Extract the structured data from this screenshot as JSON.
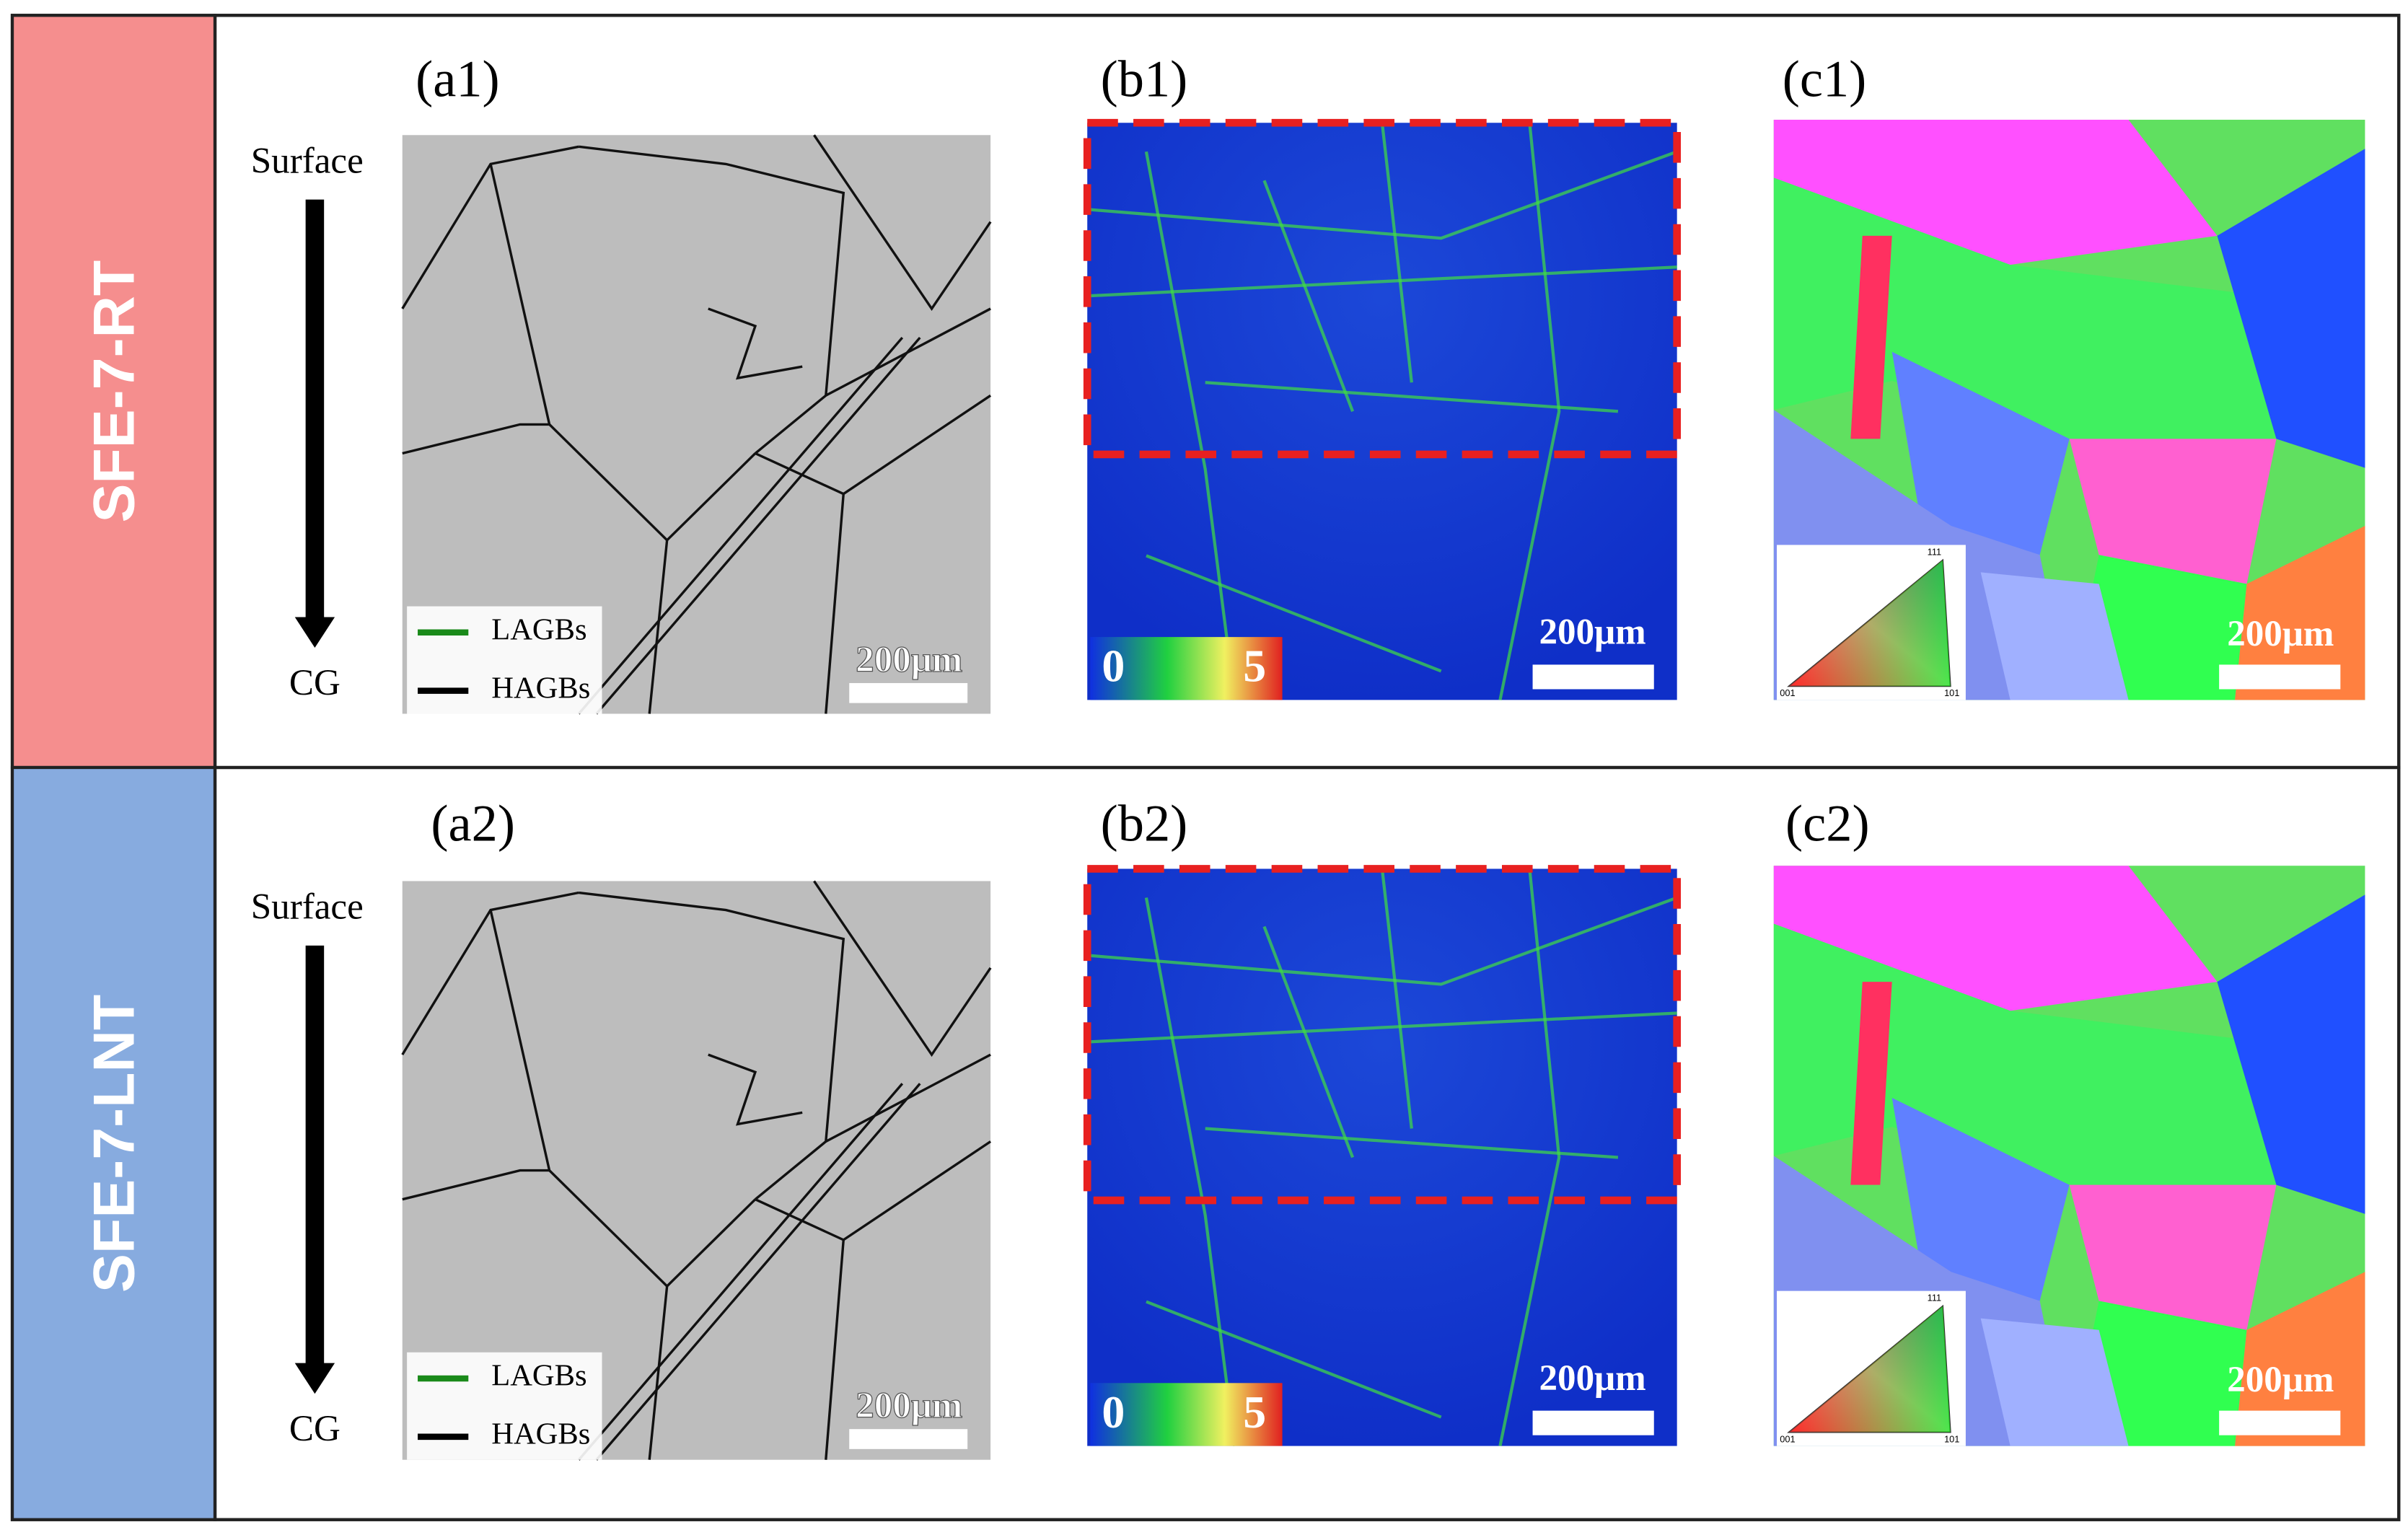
{
  "rows": [
    {
      "label": "SFE-7-RT",
      "arrow": {
        "top": "Surface",
        "bottom": "CG"
      },
      "panels": {
        "a": {
          "label": "(a1)",
          "legend": [
            "LAGBs",
            "HAGBs"
          ],
          "scale_bar": "200μm"
        },
        "b": {
          "label": "(b1)",
          "colorbar": [
            "0",
            "5"
          ],
          "scale_bar": "200μm"
        },
        "c": {
          "label": "(c1)",
          "ipf": [
            "111",
            "001",
            "101"
          ],
          "scale_bar": "200μm"
        }
      }
    },
    {
      "label": "SFE-7-LNT",
      "arrow": {
        "top": "Surface",
        "bottom": "CG"
      },
      "panels": {
        "a": {
          "label": "(a2)",
          "legend": [
            "LAGBs",
            "HAGBs"
          ],
          "scale_bar": "200μm"
        },
        "b": {
          "label": "(b2)",
          "colorbar": [
            "0",
            "5"
          ],
          "scale_bar": "200μm"
        },
        "c": {
          "label": "(c2)",
          "ipf": [
            "111",
            "001",
            "101"
          ],
          "scale_bar": "200μm"
        }
      }
    }
  ]
}
